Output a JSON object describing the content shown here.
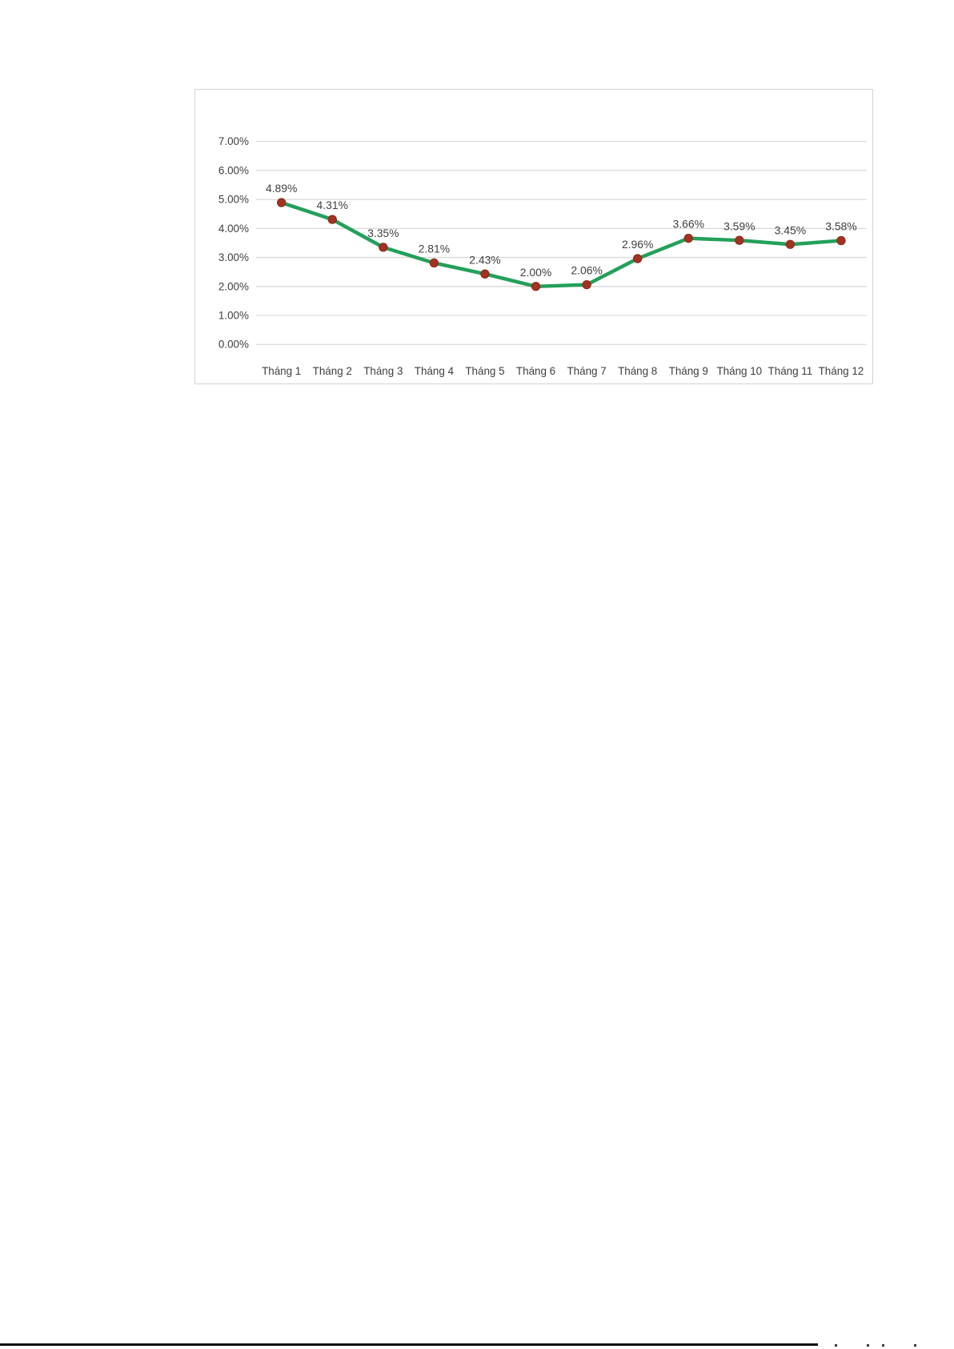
{
  "chart_data": {
    "type": "line",
    "title": "",
    "xlabel": "",
    "ylabel": "",
    "categories": [
      "Tháng 1",
      "Tháng 2",
      "Tháng 3",
      "Tháng 4",
      "Tháng 5",
      "Tháng 6",
      "Tháng 7",
      "Tháng 8",
      "Tháng 9",
      "Tháng 10",
      "Tháng 11",
      "Tháng 12"
    ],
    "series": [
      {
        "name": "",
        "values": [
          4.89,
          4.31,
          3.35,
          2.81,
          2.43,
          2.0,
          2.06,
          2.96,
          3.66,
          3.59,
          3.45,
          3.58
        ],
        "data_labels": [
          "4.89%",
          "4.31%",
          "3.35%",
          "2.81%",
          "2.43%",
          "2.00%",
          "2.06%",
          "2.96%",
          "3.66%",
          "3.59%",
          "3.45%",
          "3.58%"
        ]
      }
    ],
    "ylim": [
      0,
      7
    ],
    "yticks": [
      {
        "value": 7,
        "label": "7.00%"
      },
      {
        "value": 6,
        "label": "6.00%"
      },
      {
        "value": 5,
        "label": "5.00%"
      },
      {
        "value": 4,
        "label": "4.00%"
      },
      {
        "value": 3,
        "label": "3.00%"
      },
      {
        "value": 2,
        "label": "2.00%"
      },
      {
        "value": 1,
        "label": "1.00%"
      },
      {
        "value": 0,
        "label": "0.00%"
      }
    ],
    "grid": true,
    "legend": "none",
    "colors": {
      "line": "#23a05a",
      "marker_fill": "#a23223",
      "marker_edge": "#8a2a1c",
      "gridline": "#d9d9d9",
      "text": "#3f3f3f",
      "panel_border": "#d3d3d3",
      "panel_background": "#ffffff"
    }
  }
}
